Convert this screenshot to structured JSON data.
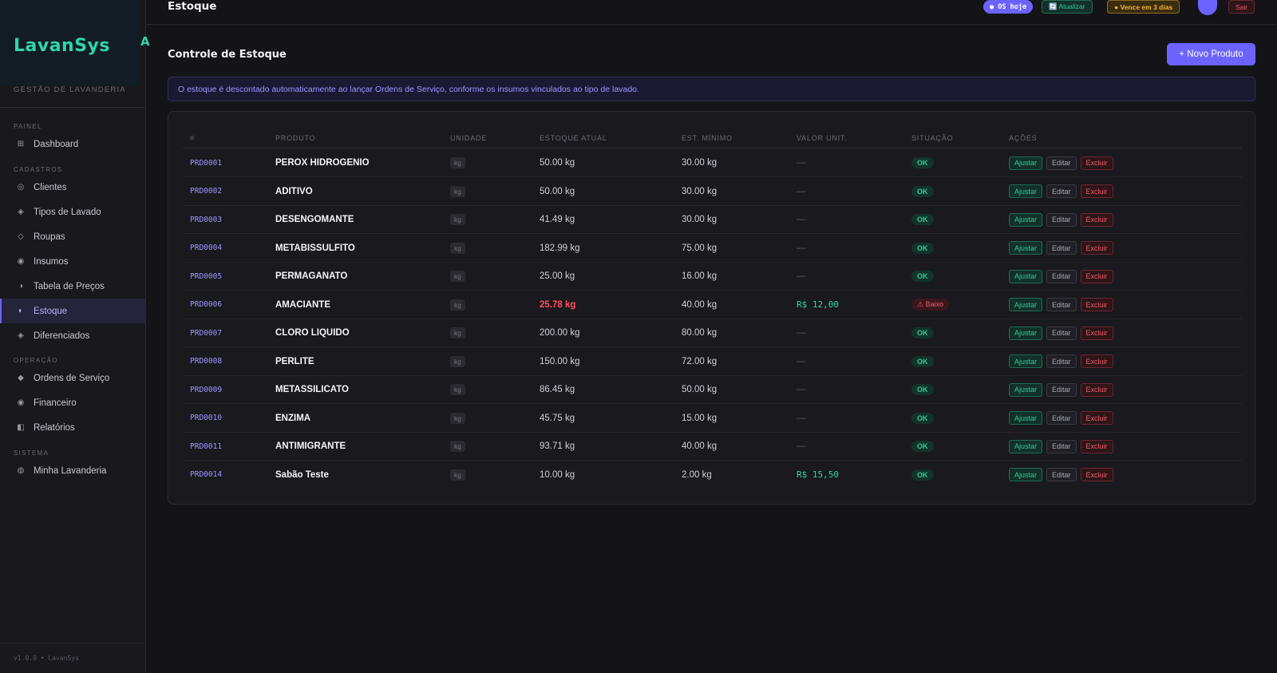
{
  "sidebar": {
    "brand": "LavanSys",
    "brand_mark": "A",
    "subtitle": "GESTÃO DE LAVANDERIA",
    "sections": {
      "painel": "PAINEL",
      "cadastros": "CADASTROS",
      "operacao": "OPERAÇÃO",
      "sistema": "SISTEMA"
    },
    "items": [
      {
        "label": "Dashboard",
        "icon": "grid-icon"
      },
      {
        "label": "Clientes",
        "icon": "users-icon"
      },
      {
        "label": "Tipos de Lavado",
        "icon": "diamond-icon"
      },
      {
        "label": "Roupas",
        "icon": "diamond-outline-icon"
      },
      {
        "label": "Insumos",
        "icon": "dot-circle-icon"
      },
      {
        "label": "Tabela de Preços",
        "icon": "half-circle-icon"
      },
      {
        "label": "Estoque",
        "icon": "half-circle-icon",
        "active": true
      },
      {
        "label": "Diferenciados",
        "icon": "diamond-icon"
      },
      {
        "label": "Ordens de Serviço",
        "icon": "diamond-filled-icon"
      },
      {
        "label": "Financeiro",
        "icon": "dot-circle-icon"
      },
      {
        "label": "Relatórios",
        "icon": "half-square-icon"
      },
      {
        "label": "Minha Lavanderia",
        "icon": "circle-icon"
      }
    ],
    "footer": "v1.0.0 • LavanSys"
  },
  "topbar": {
    "title": "Estoque",
    "os_badge": "● OS hoje",
    "update_label": "🔄 Atualizar",
    "expires_label": "● Vence em 3 dias",
    "logout_label": "Sair"
  },
  "main": {
    "title": "Controle de Estoque",
    "new_button": "+ Novo Produto",
    "notice": "O estoque é descontado automaticamente ao lançar Ordens de Serviço, conforme os insumos vinculados ao tipo de lavado."
  },
  "table": {
    "headers": [
      "#",
      "PRODUTO",
      "UNIDADE",
      "ESTOQUE ATUAL",
      "EST. MÍNIMO",
      "VALOR UNIT.",
      "SITUAÇÃO",
      "AÇÕES"
    ],
    "actions": {
      "adjust": "Ajustar",
      "edit": "Editar",
      "delete": "Excluir"
    },
    "rows": [
      {
        "id": "PRD0001",
        "name": "PEROX HIDROGENIO",
        "unit": "kg",
        "stock": "50.00 kg",
        "min": "30.00 kg",
        "value": "—",
        "status": "OK"
      },
      {
        "id": "PRD0002",
        "name": "ADITIVO",
        "unit": "kg",
        "stock": "50.00 kg",
        "min": "30.00 kg",
        "value": "—",
        "status": "OK"
      },
      {
        "id": "PRD0003",
        "name": "DESENGOMANTE",
        "unit": "kg",
        "stock": "41.49 kg",
        "min": "30.00 kg",
        "value": "—",
        "status": "OK"
      },
      {
        "id": "PRD0004",
        "name": "METABISSULFITO",
        "unit": "kg",
        "stock": "182.99 kg",
        "min": "75.00 kg",
        "value": "—",
        "status": "OK"
      },
      {
        "id": "PRD0005",
        "name": "PERMAGANATO",
        "unit": "kg",
        "stock": "25.00 kg",
        "min": "16.00 kg",
        "value": "—",
        "status": "OK"
      },
      {
        "id": "PRD0006",
        "name": "AMACIANTE",
        "unit": "kg",
        "stock": "25.78 kg",
        "min": "40.00 kg",
        "value": "R$ 12,00",
        "status": "⚠ Baixo",
        "low": true
      },
      {
        "id": "PRD0007",
        "name": "CLORO LIQUIDO",
        "unit": "kg",
        "stock": "200.00 kg",
        "min": "80.00 kg",
        "value": "—",
        "status": "OK"
      },
      {
        "id": "PRD0008",
        "name": "PERLITE",
        "unit": "kg",
        "stock": "150.00 kg",
        "min": "72.00 kg",
        "value": "—",
        "status": "OK"
      },
      {
        "id": "PRD0009",
        "name": "METASSILICATO",
        "unit": "kg",
        "stock": "86.45 kg",
        "min": "50.00 kg",
        "value": "—",
        "status": "OK"
      },
      {
        "id": "PRD0010",
        "name": "ENZIMA",
        "unit": "kg",
        "stock": "45.75 kg",
        "min": "15.00 kg",
        "value": "—",
        "status": "OK"
      },
      {
        "id": "PRD0011",
        "name": "ANTIMIGRANTE",
        "unit": "kg",
        "stock": "93.71 kg",
        "min": "40.00 kg",
        "value": "—",
        "status": "OK"
      },
      {
        "id": "PRD0014",
        "name": "Sabão Teste",
        "unit": "kg",
        "stock": "10.00 kg",
        "min": "2.00 kg",
        "value": "R$ 15,50",
        "status": "OK"
      }
    ]
  },
  "colors": {
    "accent": "#6c63ff",
    "brand": "#2fd6a8",
    "ok": "#36c996",
    "danger": "#ef5b6b"
  }
}
